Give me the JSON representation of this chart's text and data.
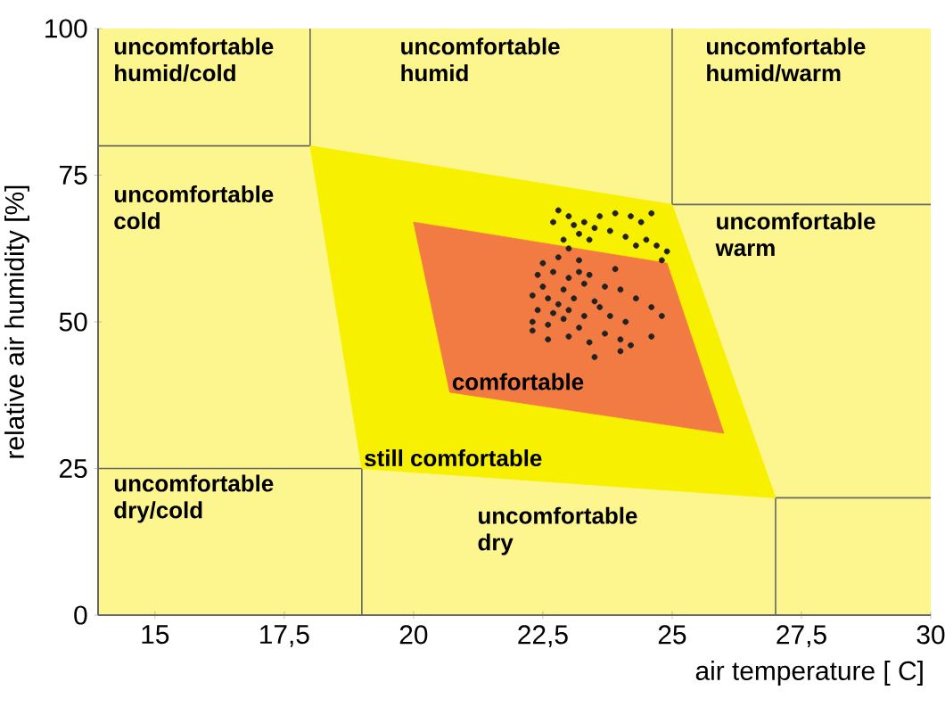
{
  "chart_data": {
    "type": "scatter",
    "xlabel": "air temperature [ C]",
    "ylabel": "relative air humidity [%]",
    "xlim": [
      13.9,
      30
    ],
    "ylim": [
      0,
      100
    ],
    "xticks": [
      15,
      {
        "value": 17.5,
        "label": "17,5"
      },
      20,
      {
        "value": 22.5,
        "label": "22,5"
      },
      25,
      {
        "value": 27.5,
        "label": "27,5"
      },
      30
    ],
    "yticks": [
      0,
      25,
      50,
      75,
      100
    ],
    "series": [
      {
        "type": "line",
        "color": "#666666",
        "x": [
          13.9,
          18,
          18
        ],
        "values": [
          80,
          80,
          100
        ]
      },
      {
        "type": "line",
        "color": "#666666",
        "x": [
          25,
          25,
          30
        ],
        "values": [
          100,
          70,
          70
        ]
      },
      {
        "type": "line",
        "color": "#666666",
        "x": [
          13.9,
          19,
          19
        ],
        "values": [
          25,
          25,
          0
        ]
      },
      {
        "type": "line",
        "color": "#666666",
        "x": [
          27,
          27,
          30
        ],
        "values": [
          0,
          20,
          20
        ]
      },
      {
        "type": "area",
        "name": "still comfortable",
        "color": "#f7f000",
        "x": [
          18,
          25,
          27,
          19
        ],
        "values": [
          80,
          70,
          20,
          25
        ]
      },
      {
        "type": "area",
        "name": "comfortable",
        "color": "#f27b44",
        "x": [
          20,
          24.9,
          26,
          20.7
        ],
        "values": [
          67,
          60,
          31,
          38
        ]
      },
      {
        "color": "#222222",
        "marker": "circle",
        "x": [
          22.8,
          23.0,
          22.7,
          23.1,
          23.3,
          23.5,
          23.6,
          23.9,
          24.2,
          24.4,
          24.6,
          23.2,
          23.8,
          24.1,
          24.5,
          24.7,
          24.9,
          24.8,
          22.9,
          23.4,
          24.3,
          23.0,
          22.5,
          22.8,
          23.2,
          22.4,
          22.7,
          23.0,
          23.4,
          22.5,
          22.9,
          23.3,
          22.3,
          22.6,
          22.8,
          23.1,
          23.5,
          22.4,
          22.7,
          23.0,
          23.3,
          23.6,
          22.3,
          22.6,
          22.9,
          23.2,
          23.8,
          24.1,
          24.3,
          24.0,
          24.6,
          24.8,
          22.3,
          22.6,
          23.0,
          23.4,
          23.7,
          24.0,
          24.2,
          24.6,
          23.5,
          24.0,
          23.2,
          23.7,
          23.9
        ],
        "values": [
          69,
          68,
          67,
          66.5,
          67,
          66,
          68,
          68.5,
          68,
          67,
          68.5,
          65,
          65.5,
          64.5,
          64,
          63,
          62,
          60.5,
          64,
          64,
          63,
          62.5,
          60,
          61,
          60.5,
          58,
          58.5,
          57.5,
          58,
          56,
          55.5,
          56.5,
          54.5,
          54,
          53,
          54,
          53.5,
          52,
          51.5,
          52,
          51,
          52.5,
          50,
          49.5,
          50.5,
          49,
          51,
          50,
          54,
          55.5,
          52.5,
          51,
          48.5,
          47,
          47.5,
          46.5,
          48,
          47,
          46,
          47.5,
          44,
          45,
          58.5,
          56,
          59
        ]
      }
    ],
    "annotations": [
      "uncomfortable humid/cold",
      "uncomfortable humid",
      "uncomfortable humid/warm",
      "uncomfortable cold",
      "uncomfortable warm",
      "uncomfortable dry/cold",
      "uncomfortable dry"
    ]
  }
}
